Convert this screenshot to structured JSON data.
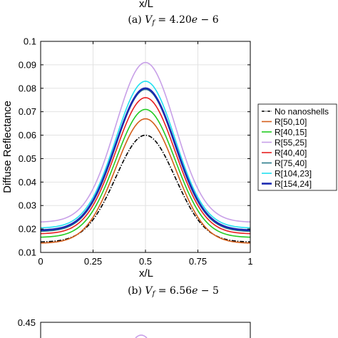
{
  "top_fragment": {
    "xlabel": "x/L",
    "caption": "(a) V_f = 4.20e − 6"
  },
  "chart_data": {
    "type": "line",
    "xlabel": "x/L",
    "ylabel": "Diffuse Reflectance",
    "xlim": [
      0,
      1
    ],
    "ylim": [
      0.01,
      0.1
    ],
    "xticks": [
      0,
      0.25,
      0.5,
      0.75,
      1
    ],
    "xtick_labels": [
      "0",
      "0.25",
      "0.5",
      "0.75",
      "1"
    ],
    "yticks": [
      0.01,
      0.02,
      0.03,
      0.04,
      0.05,
      0.06,
      0.07,
      0.08,
      0.09,
      0.1
    ],
    "ytick_labels": [
      "0.01",
      "0.02",
      "0.03",
      "0.04",
      "0.05",
      "0.06",
      "0.07",
      "0.08",
      "0.09",
      "0.1"
    ],
    "grid": true,
    "legend_position": "right",
    "series": [
      {
        "name": "No nanoshells",
        "color": "#000000",
        "dash": "dashdot",
        "width": 1.6,
        "start": 0.0145,
        "peak": 0.06,
        "end": 0.0145
      },
      {
        "name": "R[50,10]",
        "color": "#d4601c",
        "width": 1.6,
        "start": 0.014,
        "peak": 0.067,
        "end": 0.014
      },
      {
        "name": "R[40,15]",
        "color": "#22cc22",
        "width": 1.6,
        "start": 0.0165,
        "peak": 0.071,
        "end": 0.0165
      },
      {
        "name": "R[55,25]",
        "color": "#c8a0e8",
        "width": 1.6,
        "start": 0.023,
        "peak": 0.091,
        "end": 0.023
      },
      {
        "name": "R[40,40]",
        "color": "#e82020",
        "width": 1.6,
        "start": 0.018,
        "peak": 0.076,
        "end": 0.018
      },
      {
        "name": "R[75,40]",
        "color": "#2a7a8a",
        "width": 1.6,
        "start": 0.019,
        "peak": 0.0795,
        "end": 0.019
      },
      {
        "name": "R[104,23]",
        "color": "#22e0f0",
        "width": 1.6,
        "start": 0.0205,
        "peak": 0.083,
        "end": 0.0205
      },
      {
        "name": "R[154,24]",
        "color": "#1a2ab0",
        "width": 2.6,
        "start": 0.0195,
        "peak": 0.08,
        "end": 0.0195
      }
    ],
    "caption": "(b) V_f = 6.56e − 5"
  },
  "bottom_fragment": {
    "ytick_label": "0.45"
  }
}
